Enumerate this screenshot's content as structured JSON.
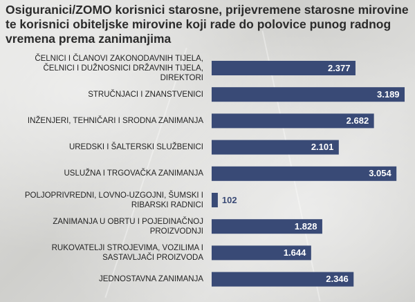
{
  "title": "Osiguranici/ZOMO korisnici starosne, prijevremene starosne mirovine te korisnici obiteljske mirovine koji rade do polovice punog radnog vremena prema zanimanjima",
  "colors": {
    "bar": "#394a76",
    "value_outside": "#3a4a75",
    "text": "#222222"
  },
  "chart_data": {
    "type": "bar",
    "orientation": "horizontal",
    "title": "Osiguranici/ZOMO korisnici starosne, prijevremene starosne mirovine te korisnici obiteljske mirovine koji rade do polovice punog radnog vremena prema zanimanjima",
    "categories": [
      "ČELNICI I ČLANOVI ZAKONODAVNIH TIJELA, ČELNICI I DUŽNOSNICI DRŽAVNIH TIJELA, DIREKTORI",
      "STRUČNJACI I ZNANSTVENICI",
      "INŽENJERI, TEHNIČARI I SRODNA ZANIMANJA",
      "UREDSKI I ŠALTERSKI SLUŽBENICI",
      "USLUŽNA I TRGOVAČKA ZANIMANJA",
      "POLJOPRIVREDNI, LOVNO-UZGOJNI, ŠUMSKI I RIBARSKI RADNICI",
      "ZANIMANJA U OBRTU I POJEDINAČNOJ PROIZVODNJI",
      "RUKOVATELJI STROJEVIMA, VOZILIMA I SASTAVLJAČI PROIZVODA",
      "JEDNOSTAVNA ZANIMANJA"
    ],
    "values": [
      2377,
      3189,
      2682,
      2101,
      3054,
      102,
      1828,
      1644,
      2346
    ],
    "value_labels": [
      "2.377",
      "3.189",
      "2.682",
      "2.101",
      "3.054",
      "102",
      "1.828",
      "1.644",
      "2.346"
    ],
    "xlim": [
      0,
      3189
    ],
    "grid": false,
    "legend": "none"
  }
}
